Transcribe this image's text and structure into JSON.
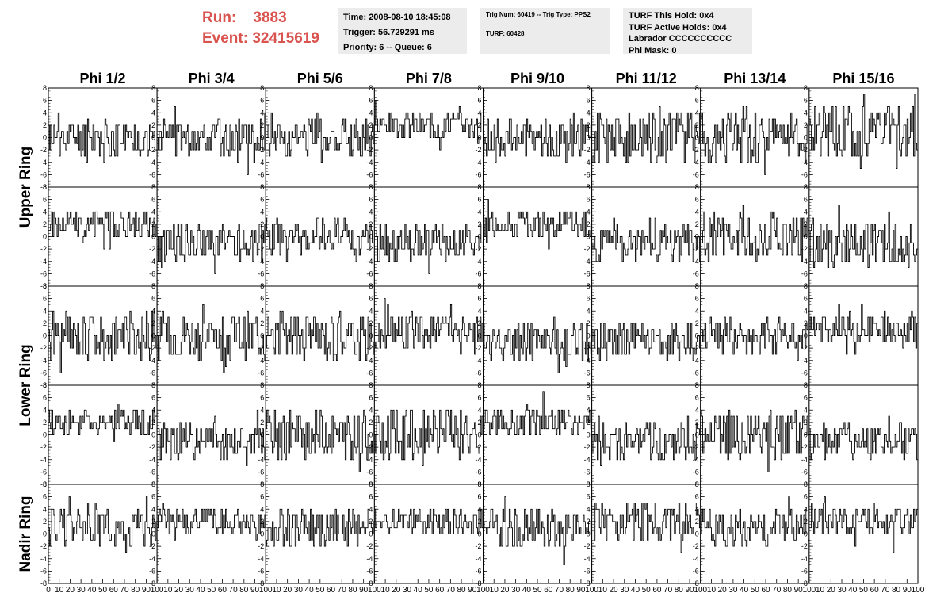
{
  "header": {
    "run_label": "Run:",
    "run_value": "3883",
    "event_label": "Event:",
    "event_value": "32415619"
  },
  "info_box_1": [
    "Time: 2008-08-10 18:45:08",
    "Trigger: 56.729291 ms",
    "Priority: 6 -- Queue: 6"
  ],
  "info_box_2": [
    "Trig Num: 60419 -- Trig Type: PPS2",
    "",
    "TURF: 60428"
  ],
  "info_box_3": [
    "TURF This Hold: 0x4",
    "TURF Active Holds: 0x4",
    "Labrador CCCCCCCCCC",
    "Phi Mask: 0"
  ],
  "colors": {
    "header_red": "#d9534f",
    "info_bg": "#ececec",
    "trace": "#000000"
  },
  "chart_data": {
    "type": "line",
    "columns": [
      "Phi 1/2",
      "Phi 3/4",
      "Phi 5/6",
      "Phi 7/8",
      "Phi 9/10",
      "Phi 11/12",
      "Phi 13/14",
      "Phi 15/16"
    ],
    "row_groups": [
      {
        "label": "Upper Ring",
        "rows": 2
      },
      {
        "label": "Lower Ring",
        "rows": 2
      },
      {
        "label": "Nadir Ring",
        "rows": 1
      }
    ],
    "ylim": [
      -8,
      8
    ],
    "yticks": [
      "8",
      "6",
      "4",
      "2",
      "0",
      "-2",
      "-4",
      "-6",
      "-8"
    ],
    "xlim": [
      0,
      100
    ],
    "xticks": [
      "0",
      "10",
      "20",
      "30",
      "40",
      "50",
      "60",
      "70",
      "80",
      "90",
      "100"
    ],
    "sample_step": 1,
    "traces": [
      [
        {
          "base": 0,
          "spread": 2,
          "seed": 11
        },
        {
          "base": 0,
          "spread": 2,
          "seed": 12
        },
        {
          "base": 0,
          "spread": 2,
          "seed": 13
        },
        {
          "base": 2,
          "spread": 1.5,
          "seed": 14
        },
        {
          "base": 0,
          "spread": 2,
          "seed": 15
        },
        {
          "base": 0,
          "spread": 3,
          "seed": 16
        },
        {
          "base": 0,
          "spread": 3,
          "seed": 17
        },
        {
          "base": 1,
          "spread": 3,
          "seed": 18
        }
      ],
      [
        {
          "base": 2,
          "spread": 1.5,
          "seed": 21
        },
        {
          "base": -1,
          "spread": 2,
          "seed": 22
        },
        {
          "base": 0,
          "spread": 2,
          "seed": 23
        },
        {
          "base": -1,
          "spread": 2,
          "seed": 24
        },
        {
          "base": 2,
          "spread": 1.5,
          "seed": 25
        },
        {
          "base": -1,
          "spread": 2,
          "seed": 26
        },
        {
          "base": 0,
          "spread": 2.5,
          "seed": 27
        },
        {
          "base": -1,
          "spread": 2.5,
          "seed": 28
        }
      ],
      [
        {
          "base": 0,
          "spread": 2.5,
          "seed": 31
        },
        {
          "base": 0,
          "spread": 2.5,
          "seed": 32
        },
        {
          "base": 0,
          "spread": 2.5,
          "seed": 33
        },
        {
          "base": 1,
          "spread": 2,
          "seed": 34
        },
        {
          "base": -1,
          "spread": 2,
          "seed": 35
        },
        {
          "base": -1,
          "spread": 2,
          "seed": 36
        },
        {
          "base": 0,
          "spread": 2,
          "seed": 37
        },
        {
          "base": 1,
          "spread": 1.5,
          "seed": 38
        }
      ],
      [
        {
          "base": 2,
          "spread": 1.5,
          "seed": 41
        },
        {
          "base": -1,
          "spread": 2,
          "seed": 42
        },
        {
          "base": 0,
          "spread": 2.5,
          "seed": 43
        },
        {
          "base": 0,
          "spread": 3,
          "seed": 44
        },
        {
          "base": 2,
          "spread": 1.5,
          "seed": 45
        },
        {
          "base": -1,
          "spread": 2,
          "seed": 46
        },
        {
          "base": 0,
          "spread": 2.5,
          "seed": 47
        },
        {
          "base": -1,
          "spread": 2,
          "seed": 48
        }
      ],
      [
        {
          "base": 1,
          "spread": 2,
          "seed": 51
        },
        {
          "base": 2,
          "spread": 1.5,
          "seed": 52
        },
        {
          "base": 1,
          "spread": 2,
          "seed": 53
        },
        {
          "base": 2,
          "spread": 1.5,
          "seed": 54
        },
        {
          "base": 1,
          "spread": 2,
          "seed": 55
        },
        {
          "base": 2,
          "spread": 2,
          "seed": 56
        },
        {
          "base": 1,
          "spread": 2,
          "seed": 57
        },
        {
          "base": 2,
          "spread": 1.5,
          "seed": 58
        }
      ]
    ]
  }
}
